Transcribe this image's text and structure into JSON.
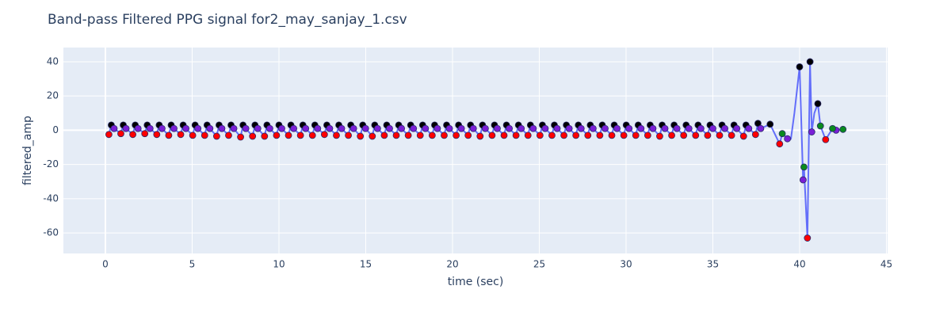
{
  "chart_data": {
    "type": "scatter",
    "title": "Band-pass Filtered PPG signal for2_may_sanjay_1.csv",
    "x_label": "time (sec)",
    "y_label": "filtered_amp",
    "xlim": [
      -2.42,
      45.07
    ],
    "ylim": [
      -72,
      48.3
    ],
    "xticks": [
      0,
      5,
      10,
      15,
      20,
      25,
      30,
      35,
      40,
      45
    ],
    "yticks": [
      -60,
      -40,
      -20,
      0,
      20,
      40
    ],
    "grid": true,
    "background": "#e5ecf6",
    "series": [
      {
        "mode": "lines",
        "color": "#636efa",
        "x": [
          0.2,
          0.34,
          0.5,
          0.89,
          1.03,
          1.19,
          1.58,
          1.72,
          1.88,
          2.27,
          2.41,
          2.57,
          2.96,
          3.1,
          3.26,
          3.65,
          3.79,
          3.95,
          4.34,
          4.48,
          4.64,
          5.03,
          5.17,
          5.33,
          5.72,
          5.86,
          6.02,
          6.41,
          6.55,
          6.71,
          7.1,
          7.24,
          7.4,
          7.79,
          7.93,
          8.09,
          8.48,
          8.62,
          8.78,
          9.17,
          9.31,
          9.47,
          9.86,
          10,
          10.16,
          10.55,
          10.69,
          10.85,
          11.24,
          11.38,
          11.54,
          11.93,
          12.07,
          12.23,
          12.62,
          12.76,
          12.92,
          13.31,
          13.45,
          13.61,
          14,
          14.14,
          14.3,
          14.69,
          14.83,
          14.99,
          15.38,
          15.52,
          15.68,
          16.07,
          16.21,
          16.37,
          16.76,
          16.9,
          17.06,
          17.45,
          17.59,
          17.75,
          18.14,
          18.28,
          18.44,
          18.83,
          18.97,
          19.13,
          19.52,
          19.66,
          19.82,
          20.21,
          20.35,
          20.51,
          20.9,
          21.04,
          21.2,
          21.59,
          21.73,
          21.89,
          22.28,
          22.42,
          22.58,
          22.97,
          23.11,
          23.27,
          23.66,
          23.8,
          23.96,
          24.35,
          24.49,
          24.65,
          25.04,
          25.18,
          25.34,
          25.73,
          25.87,
          26.03,
          26.42,
          26.56,
          26.72,
          27.11,
          27.25,
          27.41,
          27.8,
          27.94,
          28.1,
          28.49,
          28.63,
          28.79,
          29.18,
          29.32,
          29.48,
          29.87,
          30.01,
          30.17,
          30.56,
          30.7,
          30.86,
          31.25,
          31.39,
          31.55,
          31.94,
          32.08,
          32.24,
          32.63,
          32.77,
          32.93,
          33.32,
          33.46,
          33.62,
          34.01,
          34.15,
          34.31,
          34.7,
          34.84,
          35,
          35.39,
          35.53,
          35.69,
          36.08,
          36.22,
          36.38,
          36.77,
          36.91,
          37.07,
          37.46,
          37.6,
          37.76,
          38.3,
          38.85,
          39,
          39.3,
          39.5,
          39.7,
          40,
          40.2,
          40.25,
          40.45,
          40.6,
          40.7,
          40.85,
          41.05,
          41.2,
          41.5,
          41.9,
          42.1,
          42.5
        ],
        "values": [
          -2.5,
          3,
          1,
          -2,
          3,
          1,
          -2.5,
          3,
          1,
          -2,
          3,
          1,
          -2.5,
          3,
          1,
          -3,
          3,
          1,
          -2.5,
          3,
          1,
          -3,
          3,
          1,
          -3,
          3,
          1,
          -3.5,
          3,
          1,
          -3,
          3,
          1,
          -4,
          3,
          1,
          -3.5,
          3,
          1,
          -3.5,
          3,
          1,
          -3,
          3,
          1,
          -3,
          3,
          1,
          -3,
          3,
          1,
          -3,
          3,
          1,
          -2.5,
          3,
          1,
          -3,
          3,
          1,
          -3,
          3,
          1,
          -3.5,
          3,
          1,
          -3.5,
          3,
          1,
          -3,
          3,
          1,
          -3,
          3,
          1,
          -3,
          3,
          1,
          -3,
          3,
          1,
          -3,
          3,
          1,
          -3,
          3,
          1,
          -3,
          3,
          1,
          -3,
          3,
          1,
          -3.5,
          3,
          1,
          -3,
          3,
          1,
          -3,
          3,
          1,
          -3,
          3,
          1,
          -3,
          3,
          1,
          -3,
          3,
          1,
          -3,
          3,
          1,
          -3,
          3,
          1,
          -3,
          3,
          1,
          -3,
          3,
          1,
          -3,
          3,
          1,
          -3,
          3,
          1,
          -3,
          3,
          1,
          -3,
          3,
          1,
          -3,
          3,
          1,
          -3.5,
          3,
          1,
          -3,
          3,
          1,
          -3,
          3,
          1,
          -3,
          3,
          1,
          -3,
          3,
          1,
          -3,
          3,
          1,
          -3,
          3,
          1,
          -3.5,
          3,
          1,
          -2.5,
          4,
          1,
          3.5,
          -8,
          -2,
          -5,
          -5,
          10,
          37,
          -29,
          -21.5,
          -63,
          40,
          -1,
          10,
          15.5,
          2.5,
          -5.5,
          1,
          0,
          0.5
        ]
      },
      {
        "mode": "markers",
        "color": "#000000",
        "x": [
          0.34,
          1.03,
          1.72,
          2.41,
          3.1,
          3.79,
          4.48,
          5.17,
          5.86,
          6.55,
          7.24,
          7.93,
          8.62,
          9.31,
          10,
          10.69,
          11.38,
          12.07,
          12.76,
          13.45,
          14.14,
          14.83,
          15.52,
          16.21,
          16.9,
          17.59,
          18.28,
          18.97,
          19.66,
          20.35,
          21.04,
          21.73,
          22.42,
          23.11,
          23.8,
          24.49,
          25.18,
          25.87,
          26.56,
          27.25,
          27.94,
          28.63,
          29.32,
          30.01,
          30.7,
          31.39,
          32.08,
          32.77,
          33.46,
          34.15,
          34.84,
          35.53,
          36.22,
          36.91,
          37.6,
          38.3,
          40,
          40.6,
          41.05
        ],
        "values": [
          3,
          3,
          3,
          3,
          3,
          3,
          3,
          3,
          3,
          3,
          3,
          3,
          3,
          3,
          3,
          3,
          3,
          3,
          3,
          3,
          3,
          3,
          3,
          3,
          3,
          3,
          3,
          3,
          3,
          3,
          3,
          3,
          3,
          3,
          3,
          3,
          3,
          3,
          3,
          3,
          3,
          3,
          3,
          3,
          3,
          3,
          3,
          3,
          3,
          3,
          3,
          3,
          3,
          3,
          4,
          3.5,
          37,
          40,
          15.5
        ]
      },
      {
        "mode": "markers",
        "color": "#ff0000",
        "x": [
          0.2,
          0.89,
          1.58,
          2.27,
          2.96,
          3.65,
          4.34,
          5.03,
          5.72,
          6.41,
          7.1,
          7.79,
          8.48,
          9.17,
          9.86,
          10.55,
          11.24,
          11.93,
          12.62,
          13.31,
          14,
          14.69,
          15.38,
          16.07,
          16.76,
          17.45,
          18.14,
          18.83,
          19.52,
          20.21,
          20.9,
          21.59,
          22.28,
          22.97,
          23.66,
          24.35,
          25.04,
          25.73,
          26.42,
          27.11,
          27.8,
          28.49,
          29.18,
          29.87,
          30.56,
          31.25,
          31.94,
          32.63,
          33.32,
          34.01,
          34.7,
          35.39,
          36.08,
          36.77,
          37.46,
          38.85,
          40.45,
          41.5
        ],
        "values": [
          -2.5,
          -2,
          -2.5,
          -2,
          -2.5,
          -3,
          -2.5,
          -3,
          -3,
          -3.5,
          -3,
          -4,
          -3.5,
          -3.5,
          -3,
          -3,
          -3,
          -3,
          -2.5,
          -3,
          -3,
          -3.5,
          -3.5,
          -3,
          -3,
          -3,
          -3,
          -3,
          -3,
          -3,
          -3,
          -3.5,
          -3,
          -3,
          -3,
          -3,
          -3,
          -3,
          -3,
          -3,
          -3,
          -3,
          -3,
          -3,
          -3,
          -3,
          -3.5,
          -3,
          -3,
          -3,
          -3,
          -3,
          -3,
          -3.5,
          -2.5,
          -8,
          -63,
          -5.5
        ]
      },
      {
        "mode": "markers",
        "color": "#7a1fd6",
        "x": [
          0.5,
          1.19,
          1.88,
          2.57,
          3.26,
          3.95,
          4.64,
          5.33,
          6.02,
          6.71,
          7.4,
          8.09,
          8.78,
          9.47,
          10.16,
          10.85,
          11.54,
          12.23,
          12.92,
          13.61,
          14.3,
          14.99,
          15.68,
          16.37,
          17.06,
          17.75,
          18.44,
          19.13,
          19.82,
          20.51,
          21.2,
          21.89,
          22.58,
          23.27,
          23.96,
          24.65,
          25.34,
          26.03,
          26.72,
          27.41,
          28.1,
          28.79,
          29.48,
          30.17,
          30.86,
          31.55,
          32.24,
          32.93,
          33.62,
          34.31,
          35,
          35.69,
          36.38,
          37.07,
          37.76,
          39.3,
          40.2,
          40.7,
          42.1
        ],
        "values": [
          1,
          1,
          1,
          1,
          1,
          1,
          1,
          1,
          1,
          1,
          1,
          1,
          1,
          1,
          1,
          1,
          1,
          1,
          1,
          1,
          1,
          1,
          1,
          1,
          1,
          1,
          1,
          1,
          1,
          1,
          1,
          1,
          1,
          1,
          1,
          1,
          1,
          1,
          1,
          1,
          1,
          1,
          1,
          1,
          1,
          1,
          1,
          1,
          1,
          1,
          1,
          1,
          1,
          1,
          1,
          -5,
          -29,
          -1,
          0
        ]
      },
      {
        "mode": "markers",
        "color": "#0a8a1e",
        "x": [
          39,
          40.25,
          41.2,
          41.9,
          42.5
        ],
        "values": [
          -2,
          -21.5,
          2.5,
          1,
          0.5
        ]
      }
    ]
  }
}
